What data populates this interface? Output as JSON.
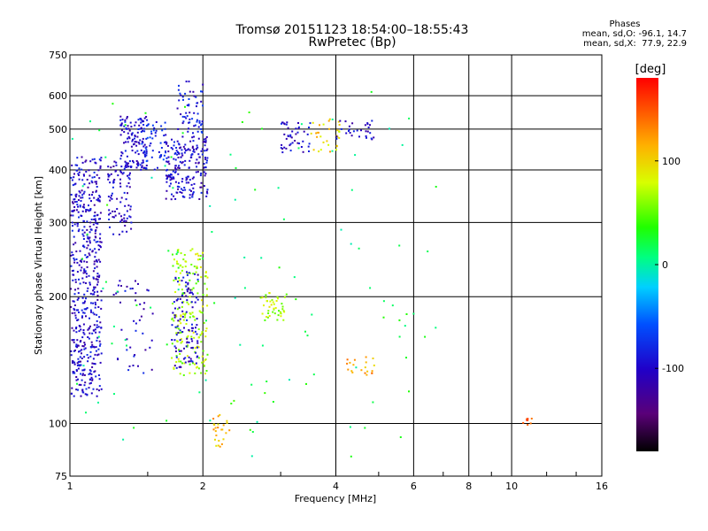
{
  "chart_data": {
    "type": "scatter",
    "title": "Tromsø 20151123 18:54:00–18:55:43",
    "subtitle": "RwPretec (Bp)",
    "xlabel": "Frequency [MHz]",
    "ylabel": "Stationary phase Virtual Height [km]",
    "x_scale": "log2",
    "y_scale": "log",
    "xlim": [
      1,
      16
    ],
    "ylim": [
      75,
      750
    ],
    "x_ticks": [
      1,
      2,
      4,
      6,
      8,
      10,
      16
    ],
    "y_ticks": [
      75,
      100,
      200,
      300,
      400,
      500,
      600,
      750
    ],
    "grid": true,
    "stats": {
      "heading": "Phases",
      "o_mode": "mean, sd,O: -96.1, 14.7",
      "x_mode": "mean, sd,X:  77.9, 22.9"
    },
    "colorbar": {
      "label": "[deg]",
      "range": [
        -180,
        180
      ],
      "ticks": [
        -100,
        0,
        100
      ],
      "colormap": "rainbow (black–purple–blue–cyan–green–yellow–orange–red)"
    },
    "clusters": [
      {
        "f_range": [
          1.0,
          1.18
        ],
        "h_range": [
          115,
          430
        ],
        "phase": -100,
        "count": 520
      },
      {
        "f_range": [
          1.22,
          1.38
        ],
        "h_range": [
          280,
          420
        ],
        "phase": -100,
        "count": 90
      },
      {
        "f_range": [
          1.3,
          1.5
        ],
        "h_range": [
          400,
          540
        ],
        "phase": -95,
        "count": 120
      },
      {
        "f_range": [
          1.45,
          1.65
        ],
        "h_range": [
          400,
          520
        ],
        "phase": -80,
        "count": 55
      },
      {
        "f_range": [
          1.65,
          2.05
        ],
        "h_range": [
          340,
          480
        ],
        "phase": -100,
        "count": 200
      },
      {
        "f_range": [
          1.75,
          2.0
        ],
        "h_range": [
          480,
          650
        ],
        "phase": -90,
        "count": 60
      },
      {
        "f_range": [
          1.7,
          2.05
        ],
        "h_range": [
          130,
          260
        ],
        "phase": 70,
        "count": 180
      },
      {
        "f_range": [
          1.7,
          1.95
        ],
        "h_range": [
          135,
          230
        ],
        "phase": -100,
        "count": 110
      },
      {
        "f_range": [
          1.25,
          1.55
        ],
        "h_range": [
          130,
          220
        ],
        "phase": -100,
        "count": 45
      },
      {
        "f_range": [
          2.7,
          3.1
        ],
        "h_range": [
          175,
          205
        ],
        "phase": 70,
        "count": 45
      },
      {
        "f_range": [
          3.0,
          3.5
        ],
        "h_range": [
          440,
          520
        ],
        "phase": -100,
        "count": 45
      },
      {
        "f_range": [
          3.5,
          4.1
        ],
        "h_range": [
          440,
          530
        ],
        "phase": 100,
        "count": 30
      },
      {
        "f_range": [
          4.0,
          4.9
        ],
        "h_range": [
          470,
          530
        ],
        "phase": -100,
        "count": 30
      },
      {
        "f_range": [
          4.2,
          4.9
        ],
        "h_range": [
          130,
          145
        ],
        "phase": 120,
        "count": 20
      },
      {
        "f_range": [
          2.1,
          2.3
        ],
        "h_range": [
          88,
          105
        ],
        "phase": 110,
        "count": 25
      },
      {
        "f_range": [
          10.6,
          11.3
        ],
        "h_range": [
          99,
          103
        ],
        "phase": 160,
        "count": 8
      },
      {
        "f_range": [
          1.0,
          6.8
        ],
        "h_range": [
          80,
          650
        ],
        "phase": 20,
        "count": 120
      }
    ]
  }
}
